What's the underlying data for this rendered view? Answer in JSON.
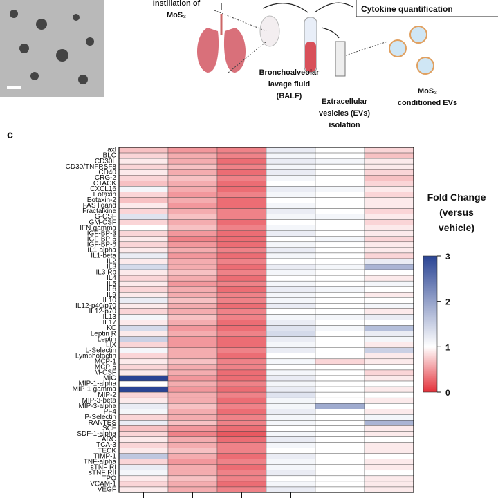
{
  "illustration": {
    "step1": [
      "Instillation of",
      "MoS₂"
    ],
    "step2": [
      "Bronchoalveolar",
      "lavage fluid",
      "(BALF)"
    ],
    "step3": [
      "Extracellular",
      "vesicles (EVs)",
      "isolation"
    ],
    "step4": [
      "MoS₂",
      "conditioned EVs"
    ],
    "step5": "Cytokine quantification"
  },
  "panel_label": "c",
  "chart_data": {
    "type": "heatmap",
    "rows": [
      "axl",
      "BLC",
      "CD30L",
      "CD30/TNFRSF8",
      "CD40",
      "CRG-2",
      "CTACK",
      "CXCL16",
      "Eotaxin",
      "Eotaxin-2",
      "FAS ligand",
      "Fractalkine",
      "G-CSF",
      "GM-CSF",
      "IFN-gamma",
      "IGF-BP-3",
      "IGF-BP-5",
      "IGF-BP-6",
      "IL1-alpha",
      "IL1-beta",
      "IL2",
      "IL3",
      "IL3 Rb",
      "IL4",
      "IL5",
      "IL6",
      "IL9",
      "IL10",
      "IL12-p40/p70",
      "IL12-p70",
      "IL13",
      "IL17",
      "KC",
      "Leptin R",
      "Leptin",
      "LIX",
      "L-Selectin",
      "Lymphotactin",
      "MCP-1",
      "MCP-5",
      "M-CSF",
      "MIG",
      "MIP-1-alpha",
      "MIP-1-gamma",
      "MIP-2",
      "MIP-3-beta",
      "MIP-3-alpha",
      "PF4",
      "P-Selectin",
      "RANTES",
      "SCF",
      "SDF-1-alpha",
      "TARC",
      "TCA-3",
      "TECK",
      "TIMP-1",
      "TNF-alpha",
      "sTNF RI",
      "sTNF RII",
      "TPO",
      "VCAM-1",
      "VEGF"
    ],
    "columns": [
      null,
      null,
      null,
      null,
      null,
      null
    ],
    "values": [
      [
        0.7,
        0.5,
        0.4,
        1.2,
        1.0,
        0.8
      ],
      [
        0.8,
        0.6,
        0.4,
        1.1,
        1.0,
        0.7
      ],
      [
        0.9,
        0.6,
        0.3,
        1.2,
        1.1,
        0.9
      ],
      [
        0.8,
        0.7,
        0.4,
        1.1,
        1.0,
        0.9
      ],
      [
        0.9,
        0.6,
        0.3,
        1.2,
        1.0,
        0.8
      ],
      [
        0.8,
        0.7,
        0.4,
        1.1,
        1.0,
        0.7
      ],
      [
        0.7,
        0.6,
        0.3,
        1.0,
        1.0,
        0.8
      ],
      [
        1.1,
        0.6,
        0.3,
        1.2,
        1.1,
        0.9
      ],
      [
        0.8,
        0.5,
        0.4,
        1.1,
        1.0,
        0.8
      ],
      [
        0.7,
        0.6,
        0.3,
        1.0,
        1.0,
        0.9
      ],
      [
        0.9,
        0.5,
        0.3,
        1.1,
        1.0,
        0.9
      ],
      [
        0.8,
        0.6,
        0.4,
        1.2,
        1.0,
        0.8
      ],
      [
        1.3,
        0.7,
        0.4,
        1.1,
        1.1,
        0.9
      ],
      [
        0.8,
        0.6,
        0.3,
        1.0,
        1.0,
        0.8
      ],
      [
        1.0,
        0.7,
        0.4,
        1.1,
        1.0,
        0.9
      ],
      [
        0.8,
        0.5,
        0.3,
        1.2,
        1.0,
        0.9
      ],
      [
        0.9,
        0.4,
        0.3,
        1.0,
        1.1,
        0.8
      ],
      [
        0.8,
        0.5,
        0.3,
        1.1,
        1.0,
        0.9
      ],
      [
        0.9,
        0.6,
        0.4,
        1.2,
        1.0,
        0.9
      ],
      [
        1.2,
        0.5,
        0.3,
        1.1,
        1.0,
        0.8
      ],
      [
        0.9,
        0.6,
        0.4,
        1.0,
        1.0,
        1.2
      ],
      [
        1.4,
        0.6,
        0.3,
        1.2,
        1.1,
        1.8
      ],
      [
        0.9,
        0.7,
        0.4,
        1.1,
        1.0,
        1.0
      ],
      [
        0.8,
        0.6,
        0.3,
        1.0,
        1.0,
        0.9
      ],
      [
        0.9,
        0.5,
        0.4,
        1.1,
        1.0,
        1.1
      ],
      [
        0.8,
        0.6,
        0.3,
        1.2,
        1.1,
        1.0
      ],
      [
        0.9,
        0.6,
        0.4,
        1.1,
        1.0,
        0.9
      ],
      [
        1.2,
        0.7,
        0.4,
        1.1,
        1.0,
        1.0
      ],
      [
        0.9,
        0.6,
        0.3,
        1.2,
        1.0,
        1.1
      ],
      [
        0.8,
        0.6,
        0.4,
        1.0,
        1.0,
        0.9
      ],
      [
        1.1,
        0.7,
        0.4,
        1.1,
        1.1,
        1.2
      ],
      [
        0.9,
        0.6,
        0.3,
        1.2,
        1.0,
        1.0
      ],
      [
        1.4,
        0.5,
        0.3,
        1.3,
        1.1,
        1.7
      ],
      [
        0.9,
        0.6,
        0.4,
        1.4,
        1.0,
        1.2
      ],
      [
        1.5,
        0.5,
        0.3,
        1.2,
        1.0,
        1.1
      ],
      [
        0.8,
        0.5,
        0.3,
        1.1,
        1.0,
        0.9
      ],
      [
        1.1,
        0.6,
        0.4,
        1.2,
        1.0,
        1.5
      ],
      [
        0.8,
        0.6,
        0.3,
        1.0,
        1.0,
        0.9
      ],
      [
        0.9,
        0.7,
        0.4,
        1.1,
        0.8,
        0.9
      ],
      [
        0.8,
        0.6,
        0.4,
        1.0,
        1.0,
        1.0
      ],
      [
        0.9,
        0.6,
        0.3,
        1.1,
        1.0,
        0.8
      ],
      [
        3.0,
        0.5,
        0.3,
        1.2,
        1.0,
        0.9
      ],
      [
        1.0,
        0.6,
        0.4,
        1.1,
        1.0,
        1.0
      ],
      [
        3.0,
        0.5,
        0.3,
        1.2,
        1.0,
        0.9
      ],
      [
        0.8,
        0.6,
        0.4,
        1.3,
        1.0,
        1.0
      ],
      [
        0.9,
        0.6,
        0.3,
        1.1,
        1.0,
        0.9
      ],
      [
        1.2,
        0.7,
        0.4,
        1.1,
        1.9,
        1.0
      ],
      [
        1.1,
        0.6,
        0.3,
        1.2,
        1.0,
        0.9
      ],
      [
        0.8,
        0.6,
        0.4,
        1.1,
        1.0,
        1.1
      ],
      [
        1.2,
        0.7,
        0.4,
        1.1,
        1.0,
        1.8
      ],
      [
        0.7,
        0.5,
        0.3,
        1.0,
        1.0,
        0.9
      ],
      [
        0.8,
        0.4,
        0.2,
        1.1,
        1.0,
        0.9
      ],
      [
        0.9,
        0.6,
        0.3,
        1.2,
        1.0,
        1.0
      ],
      [
        0.8,
        0.6,
        0.4,
        1.1,
        1.0,
        0.9
      ],
      [
        0.9,
        0.7,
        0.4,
        1.0,
        1.0,
        0.9
      ],
      [
        1.6,
        0.6,
        0.3,
        1.2,
        1.0,
        1.0
      ],
      [
        0.8,
        0.5,
        0.4,
        1.1,
        1.0,
        0.9
      ],
      [
        1.2,
        0.6,
        0.3,
        1.1,
        1.0,
        0.9
      ],
      [
        1.1,
        0.6,
        0.4,
        1.2,
        1.0,
        1.0
      ],
      [
        0.9,
        0.7,
        0.4,
        1.0,
        1.0,
        0.9
      ],
      [
        0.8,
        0.6,
        0.3,
        1.1,
        1.0,
        0.9
      ],
      [
        0.9,
        0.6,
        0.4,
        1.2,
        1.0,
        0.9
      ]
    ],
    "zlim": [
      0,
      3
    ],
    "zmid": 1,
    "colors": [
      "#e42f38",
      "#ffffff",
      "#2a4494"
    ],
    "colorbar_title": [
      "Fold Change",
      "(versus",
      "vehicle)"
    ],
    "zticks": [
      0,
      1,
      2,
      3
    ]
  }
}
